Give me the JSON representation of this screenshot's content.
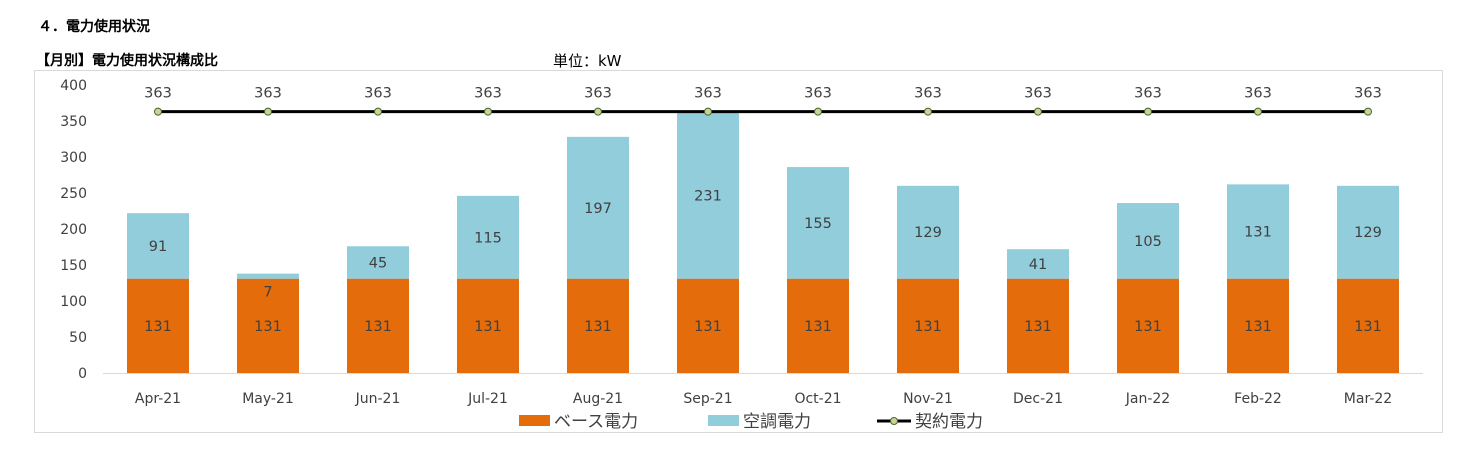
{
  "header": {
    "section_title": "４．電力使用状況",
    "chart_title": "【月別】電力使用状況構成比",
    "unit": "単位：kW"
  },
  "chart_data": {
    "type": "bar",
    "stacked": true,
    "categories": [
      "Apr-21",
      "May-21",
      "Jun-21",
      "Jul-21",
      "Aug-21",
      "Sep-21",
      "Oct-21",
      "Nov-21",
      "Dec-21",
      "Jan-22",
      "Feb-22",
      "Mar-22"
    ],
    "series": [
      {
        "name": "ベース電力",
        "kind": "bar",
        "color": "#E46C0A",
        "values": [
          131,
          131,
          131,
          131,
          131,
          131,
          131,
          131,
          131,
          131,
          131,
          131
        ]
      },
      {
        "name": "空調電力",
        "kind": "bar",
        "color": "#92CDDC",
        "values": [
          91,
          7,
          45,
          115,
          197,
          231,
          155,
          129,
          41,
          105,
          131,
          129
        ]
      },
      {
        "name": "契約電力",
        "kind": "line",
        "color": "#000000",
        "marker_color": "#C4D79B",
        "values": [
          363,
          363,
          363,
          363,
          363,
          363,
          363,
          363,
          363,
          363,
          363,
          363
        ]
      }
    ],
    "y_ticks": [
      0,
      50,
      100,
      150,
      200,
      250,
      300,
      350,
      400
    ],
    "ylim": [
      0,
      400
    ],
    "grid": false,
    "legend_position": "bottom"
  }
}
